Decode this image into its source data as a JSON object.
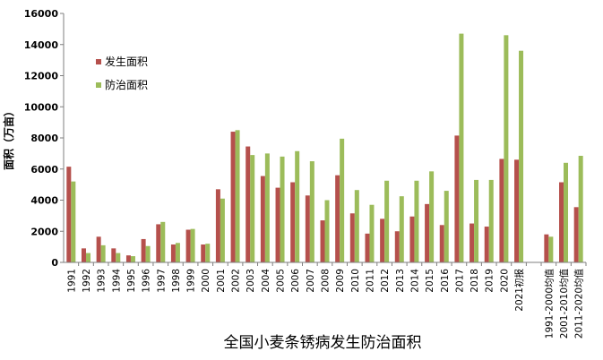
{
  "chart_data": {
    "type": "bar",
    "title": "全国小麦条锈病发生防治面积",
    "xlabel": "",
    "ylabel": "面积（万亩）",
    "ylim": [
      0,
      16000
    ],
    "yticks": [
      "0",
      "2000",
      "4000",
      "6000",
      "8000",
      "10000",
      "12000",
      "14000",
      "16000"
    ],
    "grid": false,
    "legend_position": "top-left",
    "categories": [
      "1991",
      "1992",
      "1993",
      "1994",
      "1995",
      "1996",
      "1997",
      "1998",
      "1999",
      "2000",
      "2001",
      "2002",
      "2003",
      "2004",
      "2005",
      "2006",
      "2007",
      "2008",
      "2009",
      "2010",
      "2011",
      "2012",
      "2013",
      "2014",
      "2015",
      "2016",
      "2017",
      "2018",
      "2019",
      "2020",
      "2021初报",
      "",
      "1991-2000均值",
      "2001-2010均值",
      "2011-2020均值"
    ],
    "series": [
      {
        "name": "发生面积",
        "color": "#b5504c",
        "values": [
          6150,
          900,
          1650,
          900,
          450,
          1500,
          2450,
          1150,
          2100,
          1150,
          4700,
          8400,
          7450,
          5550,
          4800,
          5150,
          4300,
          2700,
          5600,
          3150,
          1850,
          2800,
          2000,
          2950,
          3750,
          2400,
          8150,
          2500,
          2300,
          6650,
          6600,
          null,
          1800,
          5150,
          3550
        ]
      },
      {
        "name": "防治面积",
        "color": "#9cbc5a",
        "values": [
          5200,
          600,
          1100,
          600,
          400,
          1050,
          2600,
          1250,
          2150,
          1200,
          4100,
          8500,
          6900,
          7000,
          6800,
          7150,
          6500,
          4000,
          7950,
          4650,
          3700,
          5250,
          4250,
          5250,
          5850,
          4600,
          14700,
          5300,
          5300,
          14600,
          13600,
          null,
          1650,
          6400,
          6850
        ]
      }
    ]
  }
}
